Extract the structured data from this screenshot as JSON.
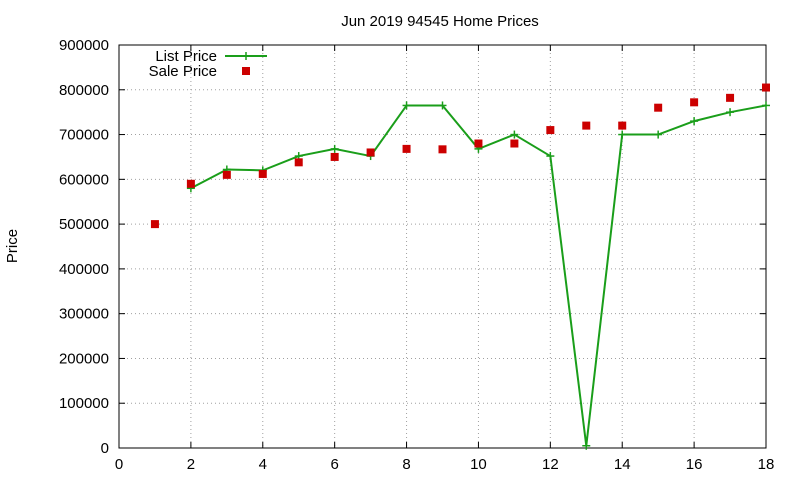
{
  "chart_data": {
    "type": "line",
    "title": "Jun 2019 94545 Home Prices",
    "xlabel": "",
    "ylabel": "Price",
    "xlim": [
      0,
      18
    ],
    "ylim": [
      0,
      900000
    ],
    "x_ticks": [
      0,
      2,
      4,
      6,
      8,
      10,
      12,
      14,
      16,
      18
    ],
    "y_ticks": [
      0,
      100000,
      200000,
      300000,
      400000,
      500000,
      600000,
      700000,
      800000,
      900000
    ],
    "grid": true,
    "legend_position": "top-left",
    "series": [
      {
        "name": "List Price",
        "style": "line-with-plus-markers",
        "color": "#1a9e1a",
        "x": [
          2,
          3,
          4,
          5,
          6,
          7,
          8,
          9,
          10,
          11,
          12,
          13,
          14,
          15,
          16,
          17,
          18
        ],
        "y": [
          580000,
          622000,
          620000,
          652000,
          668000,
          652000,
          765000,
          765000,
          668000,
          700000,
          652000,
          5000,
          700000,
          700000,
          730000,
          750000,
          765000
        ]
      },
      {
        "name": "Sale Price",
        "style": "square-markers",
        "color": "#cc0000",
        "x": [
          1,
          2,
          3,
          4,
          5,
          6,
          7,
          8,
          9,
          10,
          11,
          12,
          13,
          14,
          15,
          16,
          17,
          18
        ],
        "y": [
          500000,
          590000,
          610000,
          612000,
          638000,
          650000,
          660000,
          668000,
          667000,
          680000,
          680000,
          710000,
          720000,
          720000,
          760000,
          772000,
          782000,
          805000
        ]
      }
    ]
  }
}
